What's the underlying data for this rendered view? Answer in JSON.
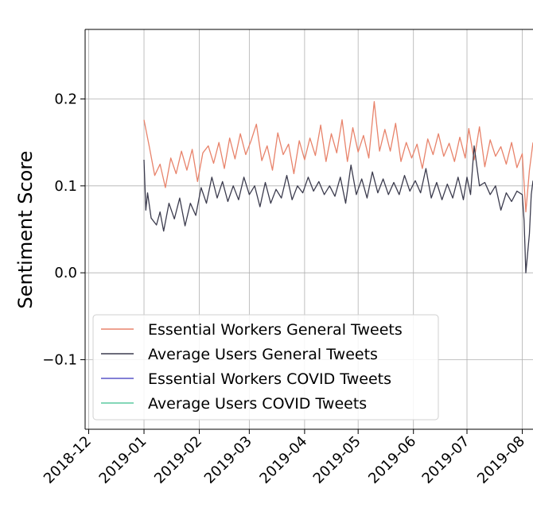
{
  "chart_data": {
    "type": "line",
    "ylabel": "Sentiment Score",
    "xlabel": "",
    "ylim": [
      -0.18,
      0.28
    ],
    "xlim": [
      "2018-11-29",
      "2019-08-07"
    ],
    "grid": true,
    "legend_position": "lower-left",
    "x_ticks": [
      "2018-12",
      "2019-01",
      "2019-02",
      "2019-03",
      "2019-04",
      "2019-05",
      "2019-06",
      "2019-07",
      "2019-08"
    ],
    "y_ticks": [
      {
        "value": -0.1,
        "label": "−0.1"
      },
      {
        "value": 0.0,
        "label": "0.0"
      },
      {
        "value": 0.1,
        "label": "0.1"
      },
      {
        "value": 0.2,
        "label": "0.2"
      }
    ],
    "series": [
      {
        "name": "Essential Workers General Tweets",
        "color": "#e8836b",
        "points": [
          [
            "2019-01-01",
            0.176
          ],
          [
            "2019-01-04",
            0.145
          ],
          [
            "2019-01-07",
            0.112
          ],
          [
            "2019-01-10",
            0.125
          ],
          [
            "2019-01-13",
            0.098
          ],
          [
            "2019-01-16",
            0.132
          ],
          [
            "2019-01-19",
            0.114
          ],
          [
            "2019-01-22",
            0.14
          ],
          [
            "2019-01-25",
            0.118
          ],
          [
            "2019-01-28",
            0.142
          ],
          [
            "2019-01-31",
            0.105
          ],
          [
            "2019-02-03",
            0.138
          ],
          [
            "2019-02-06",
            0.146
          ],
          [
            "2019-02-09",
            0.126
          ],
          [
            "2019-02-12",
            0.15
          ],
          [
            "2019-02-15",
            0.12
          ],
          [
            "2019-02-18",
            0.155
          ],
          [
            "2019-02-21",
            0.131
          ],
          [
            "2019-02-24",
            0.16
          ],
          [
            "2019-02-27",
            0.136
          ],
          [
            "2019-03-02",
            0.152
          ],
          [
            "2019-03-05",
            0.171
          ],
          [
            "2019-03-08",
            0.129
          ],
          [
            "2019-03-11",
            0.146
          ],
          [
            "2019-03-14",
            0.118
          ],
          [
            "2019-03-17",
            0.161
          ],
          [
            "2019-03-20",
            0.136
          ],
          [
            "2019-03-23",
            0.148
          ],
          [
            "2019-03-26",
            0.114
          ],
          [
            "2019-03-29",
            0.152
          ],
          [
            "2019-04-01",
            0.13
          ],
          [
            "2019-04-04",
            0.155
          ],
          [
            "2019-04-07",
            0.135
          ],
          [
            "2019-04-10",
            0.17
          ],
          [
            "2019-04-13",
            0.128
          ],
          [
            "2019-04-16",
            0.16
          ],
          [
            "2019-04-19",
            0.138
          ],
          [
            "2019-04-22",
            0.176
          ],
          [
            "2019-04-25",
            0.128
          ],
          [
            "2019-04-28",
            0.167
          ],
          [
            "2019-05-01",
            0.139
          ],
          [
            "2019-05-04",
            0.158
          ],
          [
            "2019-05-07",
            0.132
          ],
          [
            "2019-05-10",
            0.197
          ],
          [
            "2019-05-13",
            0.14
          ],
          [
            "2019-05-16",
            0.165
          ],
          [
            "2019-05-19",
            0.14
          ],
          [
            "2019-05-22",
            0.172
          ],
          [
            "2019-05-25",
            0.128
          ],
          [
            "2019-05-28",
            0.15
          ],
          [
            "2019-05-31",
            0.132
          ],
          [
            "2019-06-03",
            0.148
          ],
          [
            "2019-06-06",
            0.12
          ],
          [
            "2019-06-09",
            0.154
          ],
          [
            "2019-06-12",
            0.136
          ],
          [
            "2019-06-15",
            0.16
          ],
          [
            "2019-06-18",
            0.134
          ],
          [
            "2019-06-21",
            0.149
          ],
          [
            "2019-06-24",
            0.128
          ],
          [
            "2019-06-27",
            0.156
          ],
          [
            "2019-06-30",
            0.132
          ],
          [
            "2019-07-02",
            0.166
          ],
          [
            "2019-07-05",
            0.13
          ],
          [
            "2019-07-08",
            0.168
          ],
          [
            "2019-07-11",
            0.122
          ],
          [
            "2019-07-14",
            0.153
          ],
          [
            "2019-07-17",
            0.134
          ],
          [
            "2019-07-20",
            0.145
          ],
          [
            "2019-07-23",
            0.125
          ],
          [
            "2019-07-26",
            0.15
          ],
          [
            "2019-07-29",
            0.121
          ],
          [
            "2019-08-01",
            0.137
          ],
          [
            "2019-08-03",
            0.07
          ],
          [
            "2019-08-05",
            0.118
          ],
          [
            "2019-08-07",
            0.15
          ]
        ]
      },
      {
        "name": "Average Users General Tweets",
        "color": "#3c3c4e",
        "points": [
          [
            "2019-01-01",
            0.13
          ],
          [
            "2019-01-02",
            0.072
          ],
          [
            "2019-01-03",
            0.092
          ],
          [
            "2019-01-05",
            0.063
          ],
          [
            "2019-01-08",
            0.055
          ],
          [
            "2019-01-10",
            0.07
          ],
          [
            "2019-01-12",
            0.048
          ],
          [
            "2019-01-15",
            0.08
          ],
          [
            "2019-01-18",
            0.062
          ],
          [
            "2019-01-21",
            0.086
          ],
          [
            "2019-01-24",
            0.054
          ],
          [
            "2019-01-27",
            0.08
          ],
          [
            "2019-01-30",
            0.066
          ],
          [
            "2019-02-02",
            0.098
          ],
          [
            "2019-02-05",
            0.08
          ],
          [
            "2019-02-08",
            0.11
          ],
          [
            "2019-02-11",
            0.086
          ],
          [
            "2019-02-14",
            0.105
          ],
          [
            "2019-02-17",
            0.082
          ],
          [
            "2019-02-20",
            0.1
          ],
          [
            "2019-02-23",
            0.084
          ],
          [
            "2019-02-26",
            0.11
          ],
          [
            "2019-03-01",
            0.09
          ],
          [
            "2019-03-04",
            0.1
          ],
          [
            "2019-03-07",
            0.076
          ],
          [
            "2019-03-10",
            0.104
          ],
          [
            "2019-03-13",
            0.08
          ],
          [
            "2019-03-16",
            0.096
          ],
          [
            "2019-03-19",
            0.086
          ],
          [
            "2019-03-22",
            0.112
          ],
          [
            "2019-03-25",
            0.084
          ],
          [
            "2019-03-28",
            0.1
          ],
          [
            "2019-03-31",
            0.092
          ],
          [
            "2019-04-03",
            0.11
          ],
          [
            "2019-04-06",
            0.094
          ],
          [
            "2019-04-09",
            0.105
          ],
          [
            "2019-04-12",
            0.09
          ],
          [
            "2019-04-15",
            0.1
          ],
          [
            "2019-04-18",
            0.088
          ],
          [
            "2019-04-21",
            0.11
          ],
          [
            "2019-04-24",
            0.08
          ],
          [
            "2019-04-27",
            0.124
          ],
          [
            "2019-04-30",
            0.09
          ],
          [
            "2019-05-03",
            0.108
          ],
          [
            "2019-05-06",
            0.086
          ],
          [
            "2019-05-09",
            0.116
          ],
          [
            "2019-05-12",
            0.092
          ],
          [
            "2019-05-15",
            0.108
          ],
          [
            "2019-05-18",
            0.09
          ],
          [
            "2019-05-21",
            0.104
          ],
          [
            "2019-05-24",
            0.09
          ],
          [
            "2019-05-27",
            0.112
          ],
          [
            "2019-05-30",
            0.094
          ],
          [
            "2019-06-02",
            0.106
          ],
          [
            "2019-06-05",
            0.092
          ],
          [
            "2019-06-08",
            0.12
          ],
          [
            "2019-06-11",
            0.086
          ],
          [
            "2019-06-14",
            0.104
          ],
          [
            "2019-06-17",
            0.084
          ],
          [
            "2019-06-20",
            0.102
          ],
          [
            "2019-06-23",
            0.086
          ],
          [
            "2019-06-26",
            0.11
          ],
          [
            "2019-06-29",
            0.084
          ],
          [
            "2019-07-01",
            0.11
          ],
          [
            "2019-07-03",
            0.09
          ],
          [
            "2019-07-05",
            0.146
          ],
          [
            "2019-07-08",
            0.1
          ],
          [
            "2019-07-11",
            0.104
          ],
          [
            "2019-07-14",
            0.09
          ],
          [
            "2019-07-17",
            0.1
          ],
          [
            "2019-07-20",
            0.072
          ],
          [
            "2019-07-23",
            0.092
          ],
          [
            "2019-07-26",
            0.082
          ],
          [
            "2019-07-29",
            0.094
          ],
          [
            "2019-08-01",
            0.09
          ],
          [
            "2019-08-02",
            0.06
          ],
          [
            "2019-08-03",
            0.0
          ],
          [
            "2019-08-05",
            0.045
          ],
          [
            "2019-08-06",
            0.09
          ],
          [
            "2019-08-07",
            0.106
          ]
        ]
      },
      {
        "name": "Essential Workers COVID Tweets",
        "color": "#5a55c8",
        "points": []
      },
      {
        "name": "Average Users COVID Tweets",
        "color": "#5ccaa0",
        "points": []
      }
    ]
  }
}
